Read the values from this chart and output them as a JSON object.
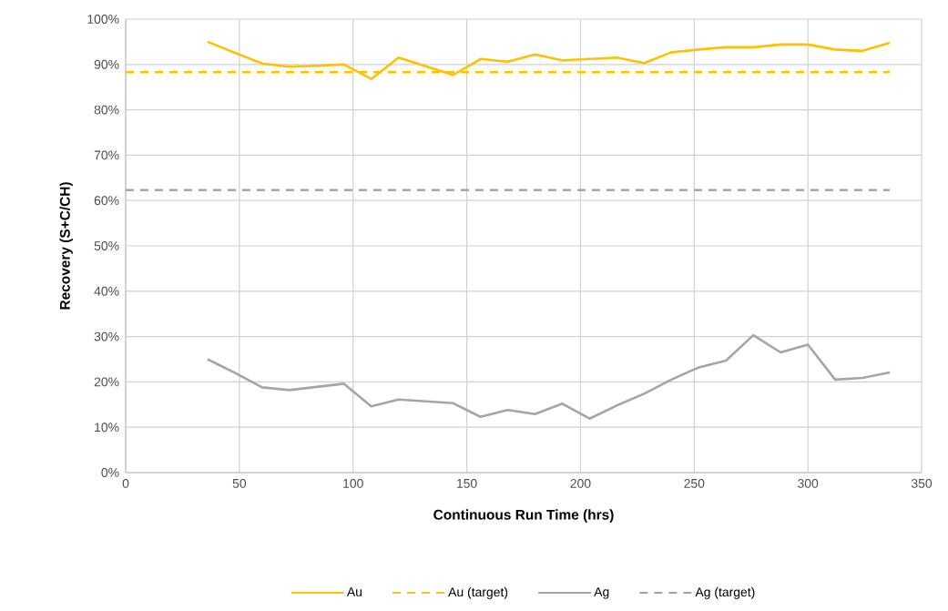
{
  "chart_data": {
    "type": "line",
    "xlabel": "Continuous Run Time (hrs)",
    "ylabel": "Recovery (S+C/CH)",
    "x": [
      36,
      48,
      60,
      72,
      84,
      96,
      108,
      120,
      132,
      144,
      156,
      168,
      180,
      192,
      204,
      216,
      228,
      240,
      252,
      264,
      276,
      288,
      300,
      312,
      324,
      336
    ],
    "series": [
      {
        "name": "Au",
        "color": "#ffc000",
        "values": [
          95,
          92.6,
          90.2,
          89.5,
          89.7,
          90,
          86.8,
          91.5,
          89.6,
          87.7,
          91.2,
          90.6,
          92.2,
          90.9,
          91.2,
          91.5,
          90.3,
          92.7,
          93.3,
          93.8,
          93.8,
          94.4,
          94.4,
          93.3,
          93,
          94.8
        ]
      },
      {
        "name": "Ag",
        "color": "#a5a5a5",
        "values": [
          25,
          22,
          18.8,
          18.2,
          18.9,
          19.6,
          14.6,
          16.1,
          15.7,
          15.3,
          12.3,
          13.8,
          12.9,
          15.2,
          11.9,
          14.8,
          17.4,
          20.5,
          23.2,
          24.7,
          30.3,
          26.5,
          28.2,
          20.5,
          20.9,
          22.1
        ]
      }
    ],
    "ref_lines": [
      {
        "axis": "y",
        "value": 88.3,
        "label": "Au (target)",
        "color": "#ffc000",
        "line_style": "dashed"
      },
      {
        "axis": "y",
        "value": 62.3,
        "label": "Ag (target)",
        "color": "#a5a5a5",
        "line_style": "dashed"
      }
    ],
    "xlim": [
      0,
      350
    ],
    "xticks": [
      0,
      50,
      100,
      150,
      200,
      250,
      300,
      350
    ],
    "ylim": [
      0,
      100
    ],
    "yticks": [
      {
        "value": 0,
        "label": "0%"
      },
      {
        "value": 10,
        "label": "10%"
      },
      {
        "value": 20,
        "label": "20%"
      },
      {
        "value": 30,
        "label": "30%"
      },
      {
        "value": 40,
        "label": "40%"
      },
      {
        "value": 50,
        "label": "50%"
      },
      {
        "value": 60,
        "label": "60%"
      },
      {
        "value": 70,
        "label": "70%"
      },
      {
        "value": 80,
        "label": "80%"
      },
      {
        "value": 90,
        "label": "90%"
      },
      {
        "value": 100,
        "label": "100%"
      }
    ],
    "grid": true,
    "legend": "bottom"
  }
}
